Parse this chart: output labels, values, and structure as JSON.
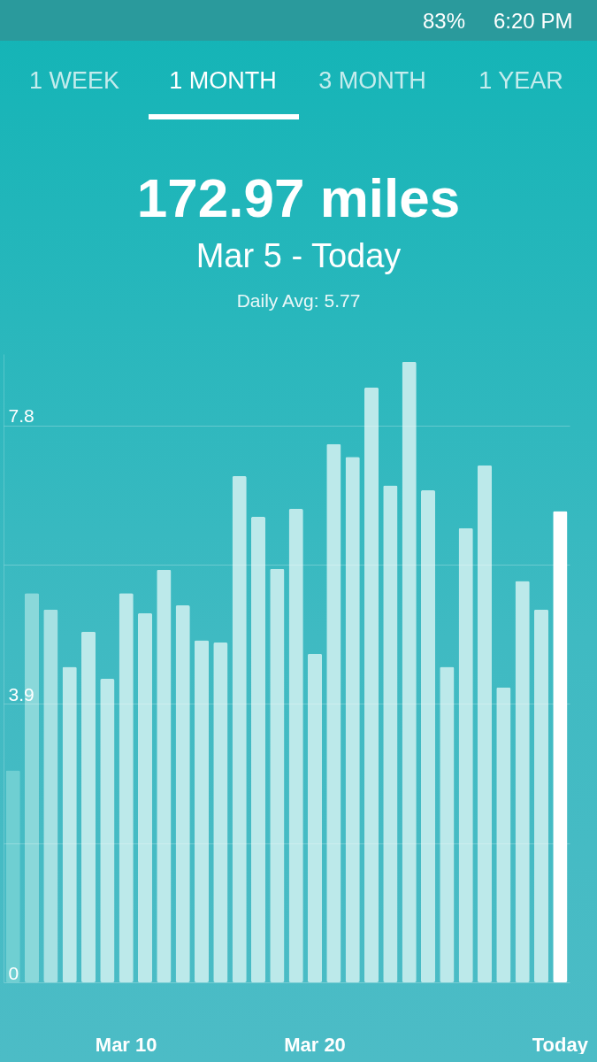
{
  "chart_data": {
    "type": "bar",
    "title": "172.97 miles",
    "subtitle": "Mar 5 - Today",
    "annotations": [
      "83%",
      "6:20 PM",
      "1 WEEK",
      "1 MONTH",
      "3 MONTH",
      "1 YEAR",
      "Daily Avg: 5.77"
    ],
    "categories": [
      null,
      null,
      null,
      null,
      null,
      null,
      "Mar 10",
      null,
      null,
      null,
      null,
      null,
      null,
      null,
      null,
      null,
      "Mar 20",
      null,
      null,
      null,
      null,
      null,
      null,
      null,
      null,
      null,
      null,
      null,
      null,
      "Today"
    ],
    "values": [
      2.97,
      5.45,
      5.22,
      4.42,
      4.91,
      4.25,
      5.45,
      5.17,
      5.78,
      5.28,
      4.79,
      4.76,
      7.09,
      6.52,
      5.79,
      6.63,
      4.6,
      7.54,
      7.36,
      8.33,
      6.96,
      8.69,
      6.89,
      4.42,
      6.36,
      7.24,
      4.13,
      5.62,
      5.22,
      6.6
    ],
    "colors": [
      "#6fcfd2",
      "#8ad8da",
      "#a6e1e3",
      "#bce9ea",
      "#bce9ea",
      "#bce9ea",
      "#bce9ea",
      "#bce9ea",
      "#bce9ea",
      "#bce9ea",
      "#bce9ea",
      "#bce9ea",
      "#bce9ea",
      "#bce9ea",
      "#bce9ea",
      "#bce9ea",
      "#bce9ea",
      "#bce9ea",
      "#bce9ea",
      "#bce9ea",
      "#bce9ea",
      "#bce9ea",
      "#bce9ea",
      "#bce9ea",
      "#bce9ea",
      "#bce9ea",
      "#bce9ea",
      "#bce9ea",
      "#bce9ea",
      "#ffffff"
    ],
    "ylim": [
      0,
      8.8
    ],
    "yticks": [
      0,
      {
        "value": 1.95,
        "label": null
      },
      3.9,
      {
        "value": 5.85,
        "label": null
      },
      7.8
    ],
    "grid": "y"
  }
}
